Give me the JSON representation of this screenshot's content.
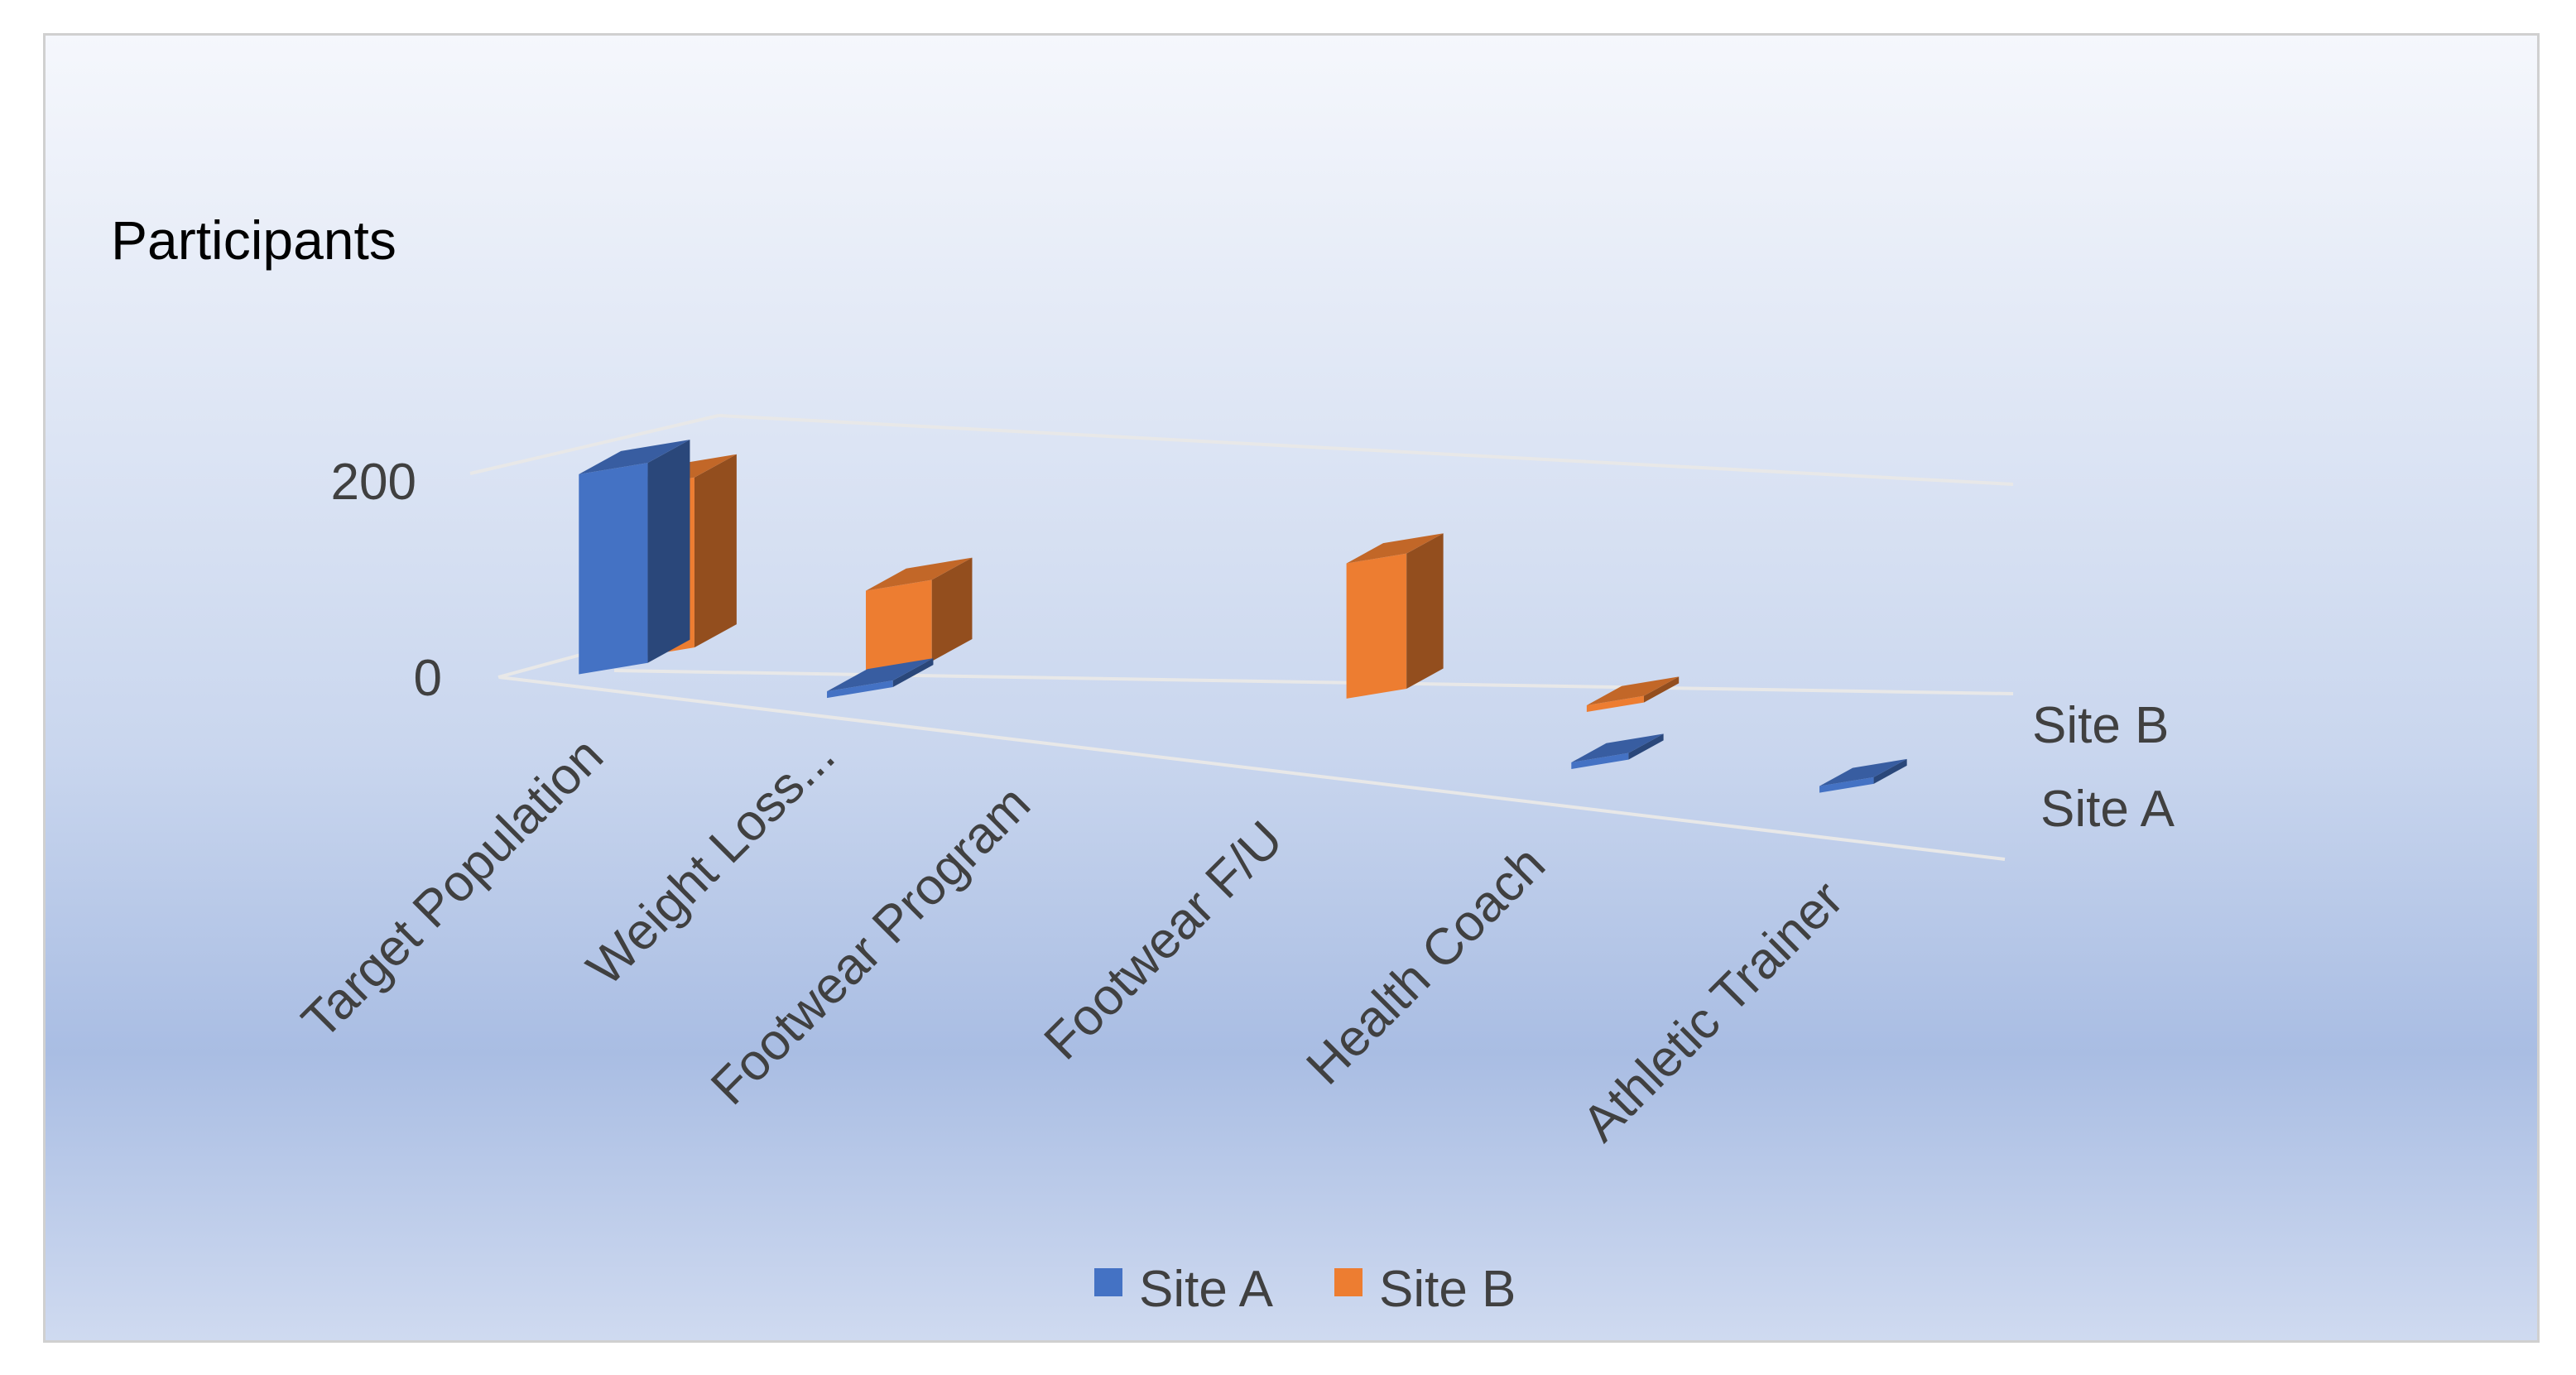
{
  "chart_data": {
    "type": "bar",
    "title": "Participants",
    "categories": [
      "Target Population",
      "Weight Loss...",
      "Footwear Program",
      "Footwear F/U",
      "Health Coach",
      "Athletic Trainer"
    ],
    "series": [
      {
        "name": "Site A",
        "color": "#4472c4",
        "values": [
          200,
          5,
          0,
          0,
          5,
          5
        ]
      },
      {
        "name": "Site B",
        "color": "#ed7d31",
        "values": [
          170,
          85,
          0,
          155,
          5,
          0
        ]
      }
    ],
    "depth_labels": [
      "Site B",
      "Site A"
    ],
    "yticks": [
      "200",
      "0"
    ],
    "ylim": [
      0,
      200
    ],
    "legend": "bottom",
    "grid": true
  }
}
